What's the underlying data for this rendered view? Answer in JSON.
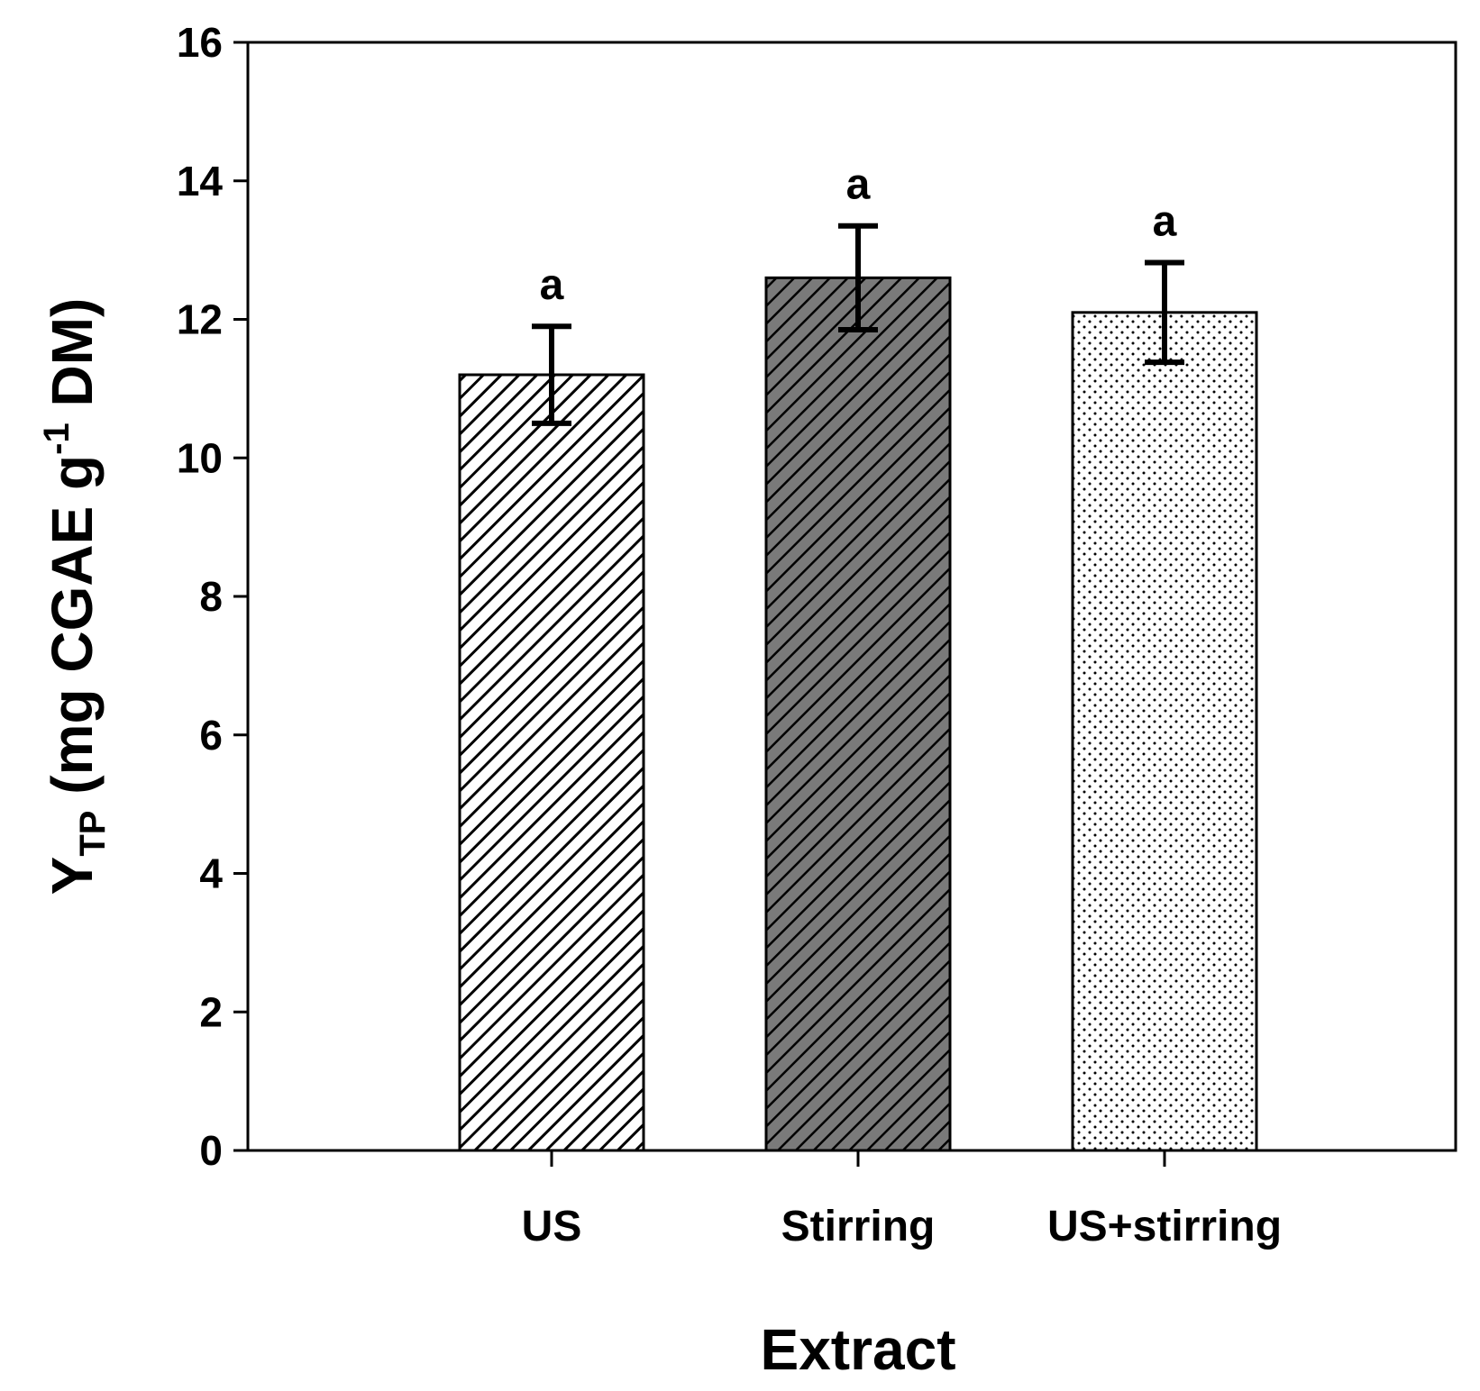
{
  "chart_data": {
    "type": "bar",
    "title": "",
    "xlabel": "Extract",
    "ylabel": {
      "main": "Y",
      "subscript": "TP",
      "unit_open": " (mg CGAE g",
      "superscript": "-1",
      "unit_close": " DM)"
    },
    "categories": [
      "US",
      "Stirring",
      "US+stirring"
    ],
    "values": [
      11.2,
      12.6,
      12.1
    ],
    "errors": [
      0.7,
      0.75,
      0.72
    ],
    "significance": [
      "a",
      "a",
      "a"
    ],
    "patterns": [
      "hatch-light",
      "hatch-dark",
      "dots"
    ],
    "ylim": [
      0,
      16
    ],
    "yticks": [
      "0",
      "2",
      "4",
      "6",
      "8",
      "10",
      "12",
      "14",
      "16"
    ],
    "grid": false,
    "legend": "none"
  }
}
